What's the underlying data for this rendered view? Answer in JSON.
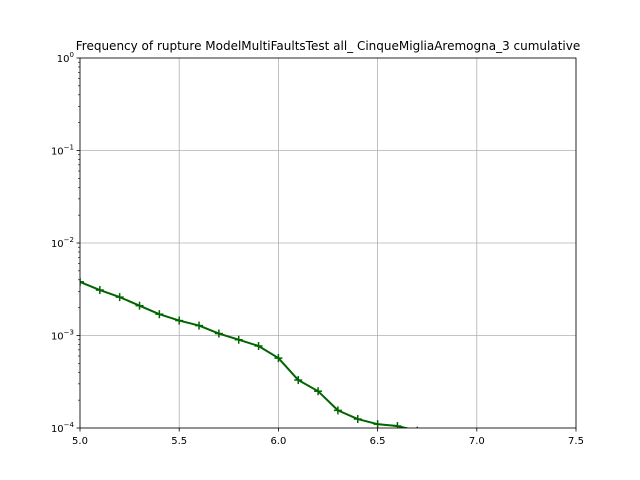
{
  "chart_data": {
    "type": "line",
    "title": "Frequency of rupture ModelMultiFaultsTest all_ CinqueMigliaAremogna_3 cumulative",
    "xlabel": "",
    "ylabel": "",
    "xlim": [
      5.0,
      7.5
    ],
    "ylim": [
      0.0001,
      1
    ],
    "yscale": "log",
    "grid": true,
    "x_ticks": [
      "5.0",
      "5.5",
      "6.0",
      "6.5",
      "7.0",
      "7.5"
    ],
    "y_ticks": [
      {
        "base": "10",
        "exp": "0"
      },
      {
        "base": "10",
        "exp": "−1"
      },
      {
        "base": "10",
        "exp": "−2"
      },
      {
        "base": "10",
        "exp": "−3"
      },
      {
        "base": "10",
        "exp": "−4"
      }
    ],
    "series": [
      {
        "color": "#006400",
        "x": [
          5.0,
          5.1,
          5.2,
          5.3,
          5.4,
          5.5,
          5.6,
          5.7,
          5.8,
          5.9,
          6.0,
          6.1,
          6.2,
          6.3,
          6.4,
          6.5,
          6.6,
          6.7
        ],
        "values": [
          0.0038,
          0.0031,
          0.0026,
          0.0021,
          0.0017,
          0.00145,
          0.00128,
          0.00105,
          0.0009,
          0.00077,
          0.00057,
          0.00033,
          0.00025,
          0.000155,
          0.000125,
          0.00011,
          0.000105,
          9.35e-05
        ]
      }
    ]
  }
}
